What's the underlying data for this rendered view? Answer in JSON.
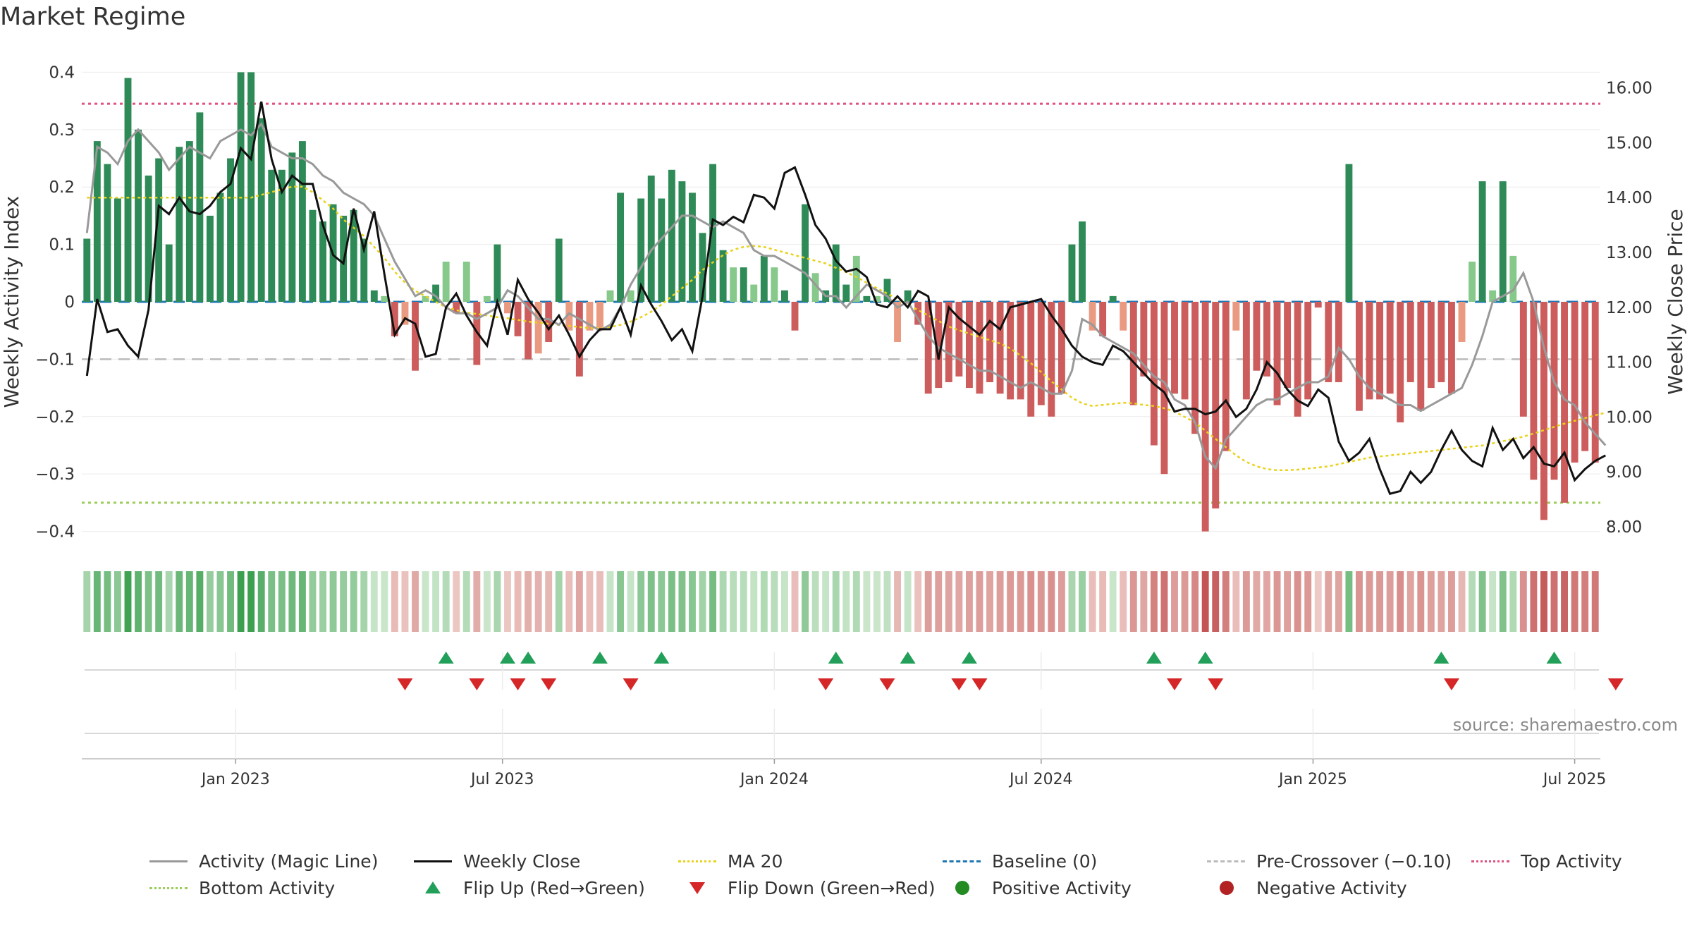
{
  "header": {
    "title": "Market Regime",
    "source": "source: sharemaestro.com"
  },
  "colors": {
    "pos_dark": "#2e8b57",
    "pos_light": "#86c98a",
    "neg_dark": "#cd5c5c",
    "neg_light": "#e99a80",
    "magic": "#999999",
    "close": "#111111",
    "ma": "#e8d21a",
    "baseline": "#1f77b4",
    "pre": "#bbbbbb",
    "top": "#e05080",
    "bottom": "#9ccc5a",
    "flip_up": "#22a05a",
    "flip_down": "#d62728"
  },
  "chart_data": {
    "type": "bar",
    "ylabel_left": "Weekly Activity Index",
    "ylabel_right": "Weekly Close Price",
    "ylim_left": [
      -0.43,
      0.43
    ],
    "ylim_right": [
      7.6,
      16.6
    ],
    "yticks_left": [
      {
        "v": 0.4,
        "label": "0.4"
      },
      {
        "v": 0.3,
        "label": "0.3"
      },
      {
        "v": 0.2,
        "label": "0.2"
      },
      {
        "v": 0.1,
        "label": "0.1"
      },
      {
        "v": 0,
        "label": "0"
      },
      {
        "v": -0.1,
        "label": "−0.1"
      },
      {
        "v": -0.2,
        "label": "−0.2"
      },
      {
        "v": -0.3,
        "label": "−0.3"
      },
      {
        "v": -0.4,
        "label": "−0.4"
      }
    ],
    "yticks_right": [
      "16.00",
      "15.00",
      "14.00",
      "13.00",
      "12.00",
      "11.00",
      "10.00",
      "9.00",
      "8.00"
    ],
    "x_ticks": [
      {
        "label": "Jan 2023",
        "week": 14.5
      },
      {
        "label": "Jul 2023",
        "week": 40.5
      },
      {
        "label": "Jan 2024",
        "week": 67
      },
      {
        "label": "Jul 2024",
        "week": 93
      },
      {
        "label": "Jan 2025",
        "week": 119.5
      },
      {
        "label": "Jul 2025",
        "week": 145
      }
    ],
    "reference_lines": {
      "top_activity": 0.345,
      "bottom_activity": -0.35,
      "pre_crossover": -0.1,
      "baseline": 0
    },
    "activity": [
      0.11,
      0.28,
      0.24,
      0.18,
      0.39,
      0.3,
      0.22,
      0.25,
      0.1,
      0.27,
      0.28,
      0.33,
      0.15,
      0.19,
      0.25,
      0.4,
      0.4,
      0.32,
      0.23,
      0.23,
      0.26,
      0.28,
      0.16,
      0.14,
      0.17,
      0.15,
      0.16,
      0.11,
      0.02,
      0.01,
      -0.06,
      -0.04,
      -0.12,
      0.01,
      0.03,
      0.07,
      -0.02,
      0.07,
      -0.11,
      0.01,
      0.1,
      -0.02,
      -0.06,
      -0.1,
      -0.09,
      -0.07,
      0.11,
      -0.05,
      -0.13,
      -0.05,
      -0.05,
      0.02,
      0.19,
      0.02,
      0.18,
      0.22,
      0.18,
      0.23,
      0.21,
      0.19,
      0.12,
      0.24,
      0.09,
      0.06,
      0.06,
      0.03,
      0.08,
      0.06,
      0.02,
      -0.05,
      0.17,
      0.05,
      0.02,
      0.1,
      0.03,
      0.08,
      0.01,
      0.01,
      0.04,
      -0.07,
      0.02,
      -0.04,
      -0.16,
      -0.15,
      -0.14,
      -0.13,
      -0.15,
      -0.16,
      -0.14,
      -0.16,
      -0.17,
      -0.17,
      -0.2,
      -0.18,
      -0.2,
      -0.16,
      0.1,
      0.14,
      -0.05,
      -0.06,
      0.01,
      -0.05,
      -0.18,
      -0.13,
      -0.25,
      -0.3,
      -0.16,
      -0.17,
      -0.23,
      -0.4,
      -0.36,
      -0.26,
      -0.05,
      -0.17,
      -0.12,
      -0.13,
      -0.18,
      -0.15,
      -0.2,
      -0.17,
      -0.01,
      -0.14,
      -0.14,
      0.24,
      -0.19,
      -0.17,
      -0.17,
      -0.16,
      -0.21,
      -0.14,
      -0.19,
      -0.15,
      -0.14,
      -0.16,
      -0.07,
      0.07,
      0.21,
      0.02,
      0.21,
      0.08,
      -0.2,
      -0.31,
      -0.38,
      -0.31,
      -0.35,
      -0.28,
      -0.26,
      -0.28
    ],
    "magic_line": [
      0.12,
      0.27,
      0.26,
      0.24,
      0.28,
      0.3,
      0.28,
      0.26,
      0.23,
      0.25,
      0.27,
      0.26,
      0.25,
      0.28,
      0.29,
      0.3,
      0.29,
      0.31,
      0.27,
      0.26,
      0.25,
      0.25,
      0.24,
      0.22,
      0.21,
      0.19,
      0.18,
      0.17,
      0.15,
      0.11,
      0.07,
      0.04,
      0.01,
      0.02,
      0.01,
      -0.01,
      -0.02,
      -0.02,
      -0.03,
      -0.02,
      -0.01,
      0.02,
      0.01,
      -0.01,
      -0.03,
      -0.03,
      -0.04,
      -0.02,
      -0.03,
      -0.04,
      -0.05,
      -0.04,
      -0.01,
      0.03,
      0.06,
      0.09,
      0.11,
      0.13,
      0.15,
      0.15,
      0.14,
      0.13,
      0.14,
      0.13,
      0.12,
      0.09,
      0.08,
      0.08,
      0.07,
      0.06,
      0.05,
      0.03,
      0.01,
      0.01,
      -0.01,
      0.01,
      0.03,
      0.02,
      0.01,
      -0.01,
      0.0,
      -0.03,
      -0.06,
      -0.08,
      -0.09,
      -0.1,
      -0.11,
      -0.12,
      -0.12,
      -0.13,
      -0.14,
      -0.15,
      -0.14,
      -0.15,
      -0.16,
      -0.16,
      -0.12,
      -0.03,
      -0.04,
      -0.06,
      -0.07,
      -0.08,
      -0.09,
      -0.11,
      -0.13,
      -0.14,
      -0.17,
      -0.18,
      -0.21,
      -0.27,
      -0.29,
      -0.24,
      -0.22,
      -0.2,
      -0.18,
      -0.17,
      -0.17,
      -0.16,
      -0.15,
      -0.14,
      -0.14,
      -0.13,
      -0.08,
      -0.1,
      -0.13,
      -0.15,
      -0.16,
      -0.17,
      -0.18,
      -0.18,
      -0.19,
      -0.18,
      -0.17,
      -0.16,
      -0.15,
      -0.11,
      -0.06,
      0.0,
      0.01,
      0.02,
      0.05,
      0.0,
      -0.08,
      -0.14,
      -0.17,
      -0.18,
      -0.21,
      -0.23,
      -0.25
    ],
    "weekly_close": [
      10.75,
      12.15,
      11.55,
      11.6,
      11.3,
      11.1,
      11.95,
      13.85,
      13.7,
      14.0,
      13.75,
      13.7,
      13.85,
      14.1,
      14.25,
      14.9,
      14.7,
      15.75,
      14.7,
      14.1,
      14.4,
      14.25,
      14.25,
      13.5,
      12.95,
      12.8,
      13.8,
      13.05,
      13.75,
      12.6,
      11.5,
      11.8,
      11.7,
      11.1,
      11.15,
      12.0,
      12.25,
      11.85,
      11.55,
      11.3,
      12.1,
      11.5,
      12.5,
      12.15,
      11.9,
      11.6,
      11.85,
      11.5,
      11.1,
      11.4,
      11.6,
      11.6,
      12.0,
      11.5,
      12.4,
      12.05,
      11.75,
      11.4,
      11.6,
      11.2,
      12.2,
      13.6,
      13.5,
      13.65,
      13.55,
      14.05,
      14.0,
      13.8,
      14.45,
      14.55,
      14.05,
      13.5,
      13.25,
      12.85,
      12.65,
      12.7,
      12.55,
      12.05,
      12.0,
      12.2,
      12.0,
      12.3,
      12.2,
      11.05,
      12.0,
      11.8,
      11.65,
      11.5,
      11.75,
      11.6,
      12.0,
      12.05,
      12.1,
      12.15,
      11.85,
      11.6,
      11.3,
      11.1,
      11.0,
      10.95,
      11.3,
      11.2,
      11.0,
      10.8,
      10.6,
      10.45,
      10.1,
      10.15,
      10.15,
      10.05,
      10.1,
      10.3,
      10.0,
      10.15,
      10.5,
      11.0,
      10.8,
      10.5,
      10.3,
      10.2,
      10.5,
      10.35,
      9.55,
      9.2,
      9.35,
      9.6,
      9.05,
      8.6,
      8.65,
      9.0,
      8.8,
      9.0,
      9.4,
      9.75,
      9.4,
      9.2,
      9.1,
      9.8,
      9.4,
      9.6,
      9.25,
      9.45,
      9.15,
      9.1,
      9.35,
      8.85,
      9.05,
      9.2,
      9.3
    ],
    "ma20": [
      14.0,
      14.0,
      14.0,
      14.0,
      14.0,
      14.0,
      14.0,
      14.0,
      14.0,
      14.0,
      14.0,
      14.0,
      14.0,
      14.0,
      14.0,
      14.0,
      14.0,
      14.05,
      14.1,
      14.15,
      14.2,
      14.2,
      14.1,
      13.95,
      13.8,
      13.6,
      13.45,
      13.3,
      13.1,
      12.9,
      12.65,
      12.45,
      12.3,
      12.2,
      12.1,
      12.0,
      11.95,
      11.9,
      11.88,
      11.85,
      11.82,
      11.8,
      11.77,
      11.74,
      11.72,
      11.7,
      11.68,
      11.66,
      11.64,
      11.62,
      11.62,
      11.64,
      11.68,
      11.74,
      11.82,
      11.92,
      12.05,
      12.2,
      12.35,
      12.5,
      12.68,
      12.82,
      12.95,
      13.05,
      13.1,
      13.12,
      13.1,
      13.05,
      13.0,
      12.95,
      12.9,
      12.85,
      12.8,
      12.72,
      12.64,
      12.55,
      12.45,
      12.35,
      12.25,
      12.15,
      12.05,
      11.95,
      11.85,
      11.75,
      11.65,
      11.58,
      11.52,
      11.46,
      11.4,
      11.34,
      11.25,
      11.12,
      10.98,
      10.82,
      10.65,
      10.5,
      10.35,
      10.25,
      10.2,
      10.22,
      10.24,
      10.26,
      10.25,
      10.22,
      10.2,
      10.16,
      10.1,
      10.0,
      9.9,
      9.75,
      9.6,
      9.45,
      9.3,
      9.18,
      9.1,
      9.05,
      9.03,
      9.03,
      9.04,
      9.06,
      9.08,
      9.1,
      9.14,
      9.18,
      9.22,
      9.26,
      9.28,
      9.3,
      9.32,
      9.34,
      9.36,
      9.38,
      9.4,
      9.42,
      9.44,
      9.46,
      9.48,
      9.52,
      9.56,
      9.6,
      9.64,
      9.7,
      9.76,
      9.82,
      9.88,
      9.93,
      9.98,
      10.03,
      10.08
    ],
    "flip_up_weeks": [
      35,
      41,
      43,
      50,
      56,
      73,
      80,
      86,
      104,
      109,
      132,
      143
    ],
    "flip_down_weeks": [
      31,
      38,
      42,
      45,
      53,
      72,
      78,
      85,
      87,
      106,
      110,
      133,
      149
    ]
  },
  "legend": {
    "row1": [
      "Activity (Magic Line)",
      "Weekly Close",
      "MA 20",
      "Baseline (0)",
      "Pre-Crossover (−0.10)",
      "Top Activity"
    ],
    "row2": [
      "Bottom Activity",
      "Flip Up (Red→Green)",
      "Flip Down (Green→Red)",
      "Positive Activity",
      "Negative Activity"
    ]
  }
}
